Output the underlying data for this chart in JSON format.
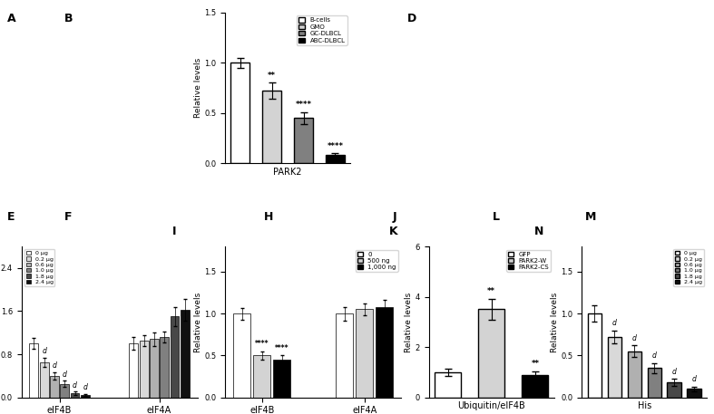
{
  "panel_C": {
    "title": "PARK2",
    "groups": [
      "B-cells",
      "GMO",
      "GC-DLBCL",
      "ABC-DLBCL"
    ],
    "values": [
      1.0,
      0.72,
      0.45,
      0.08
    ],
    "errors": [
      0.05,
      0.08,
      0.06,
      0.02
    ],
    "colors": [
      "#ffffff",
      "#d3d3d3",
      "#808080",
      "#000000"
    ],
    "ylabel": "Relative levels",
    "ylim": [
      0,
      1.5
    ],
    "yticks": [
      0,
      0.5,
      1.0,
      1.5
    ],
    "significance": [
      "",
      "**",
      "****",
      "****"
    ],
    "edgecolor": "#000000"
  },
  "panel_G": {
    "groups": [
      "eIF4B",
      "eIF4A"
    ],
    "series_labels": [
      "0 μg",
      "0.2 μg",
      "0.6 μg",
      "1.0 μg",
      "1.8 μg",
      "2.4 μg"
    ],
    "colors": [
      "#ffffff",
      "#d9d9d9",
      "#b0b0b0",
      "#808080",
      "#484848",
      "#101010"
    ],
    "values_eIF4B": [
      1.0,
      0.65,
      0.4,
      0.25,
      0.08,
      0.05
    ],
    "errors_eIF4B": [
      0.1,
      0.09,
      0.07,
      0.06,
      0.03,
      0.02
    ],
    "values_eIF4A": [
      1.0,
      1.05,
      1.08,
      1.12,
      1.5,
      1.62
    ],
    "errors_eIF4A": [
      0.12,
      0.1,
      0.12,
      0.1,
      0.18,
      0.2
    ],
    "significance_eIF4B": [
      "",
      "d",
      "d",
      "d",
      "d",
      "d"
    ],
    "significance_eIF4A": [
      "",
      "",
      "",
      "",
      "",
      ""
    ],
    "ylabel": "Relative levels",
    "ylim": [
      0,
      2.8
    ],
    "yticks": [
      0,
      0.8,
      1.6,
      2.4
    ]
  },
  "panel_I": {
    "groups": [
      "eIF4B",
      "eIF4A"
    ],
    "series_labels": [
      "0",
      "500 ng",
      "1,000 ng"
    ],
    "colors": [
      "#ffffff",
      "#d3d3d3",
      "#000000"
    ],
    "values_eIF4B": [
      1.0,
      0.5,
      0.45
    ],
    "errors_eIF4B": [
      0.07,
      0.05,
      0.05
    ],
    "values_eIF4A": [
      1.0,
      1.05,
      1.08
    ],
    "errors_eIF4A": [
      0.08,
      0.07,
      0.08
    ],
    "significance_eIF4B": [
      "",
      "****",
      "****"
    ],
    "significance_eIF4A": [
      "",
      "",
      ""
    ],
    "ylabel": "Relative levels",
    "ylim": [
      0,
      1.8
    ],
    "yticks": [
      0,
      0.5,
      1.0,
      1.5
    ]
  },
  "panel_K": {
    "groups": [
      "GFP",
      "PARK2-W",
      "PARK2-CS"
    ],
    "values": [
      1.0,
      3.5,
      0.9
    ],
    "errors": [
      0.15,
      0.4,
      0.12
    ],
    "colors": [
      "#ffffff",
      "#d3d3d3",
      "#000000"
    ],
    "ylabel": "Relative levels",
    "xlabel": "Ubiquitin/eIF4B",
    "ylim": [
      0,
      6.0
    ],
    "yticks": [
      0,
      2,
      4,
      6
    ],
    "significance": [
      "",
      "**",
      "**"
    ],
    "edgecolor": "#000000"
  },
  "panel_N": {
    "series_labels": [
      "0 μg",
      "0.2 μg",
      "0.6 μg",
      "1.0 μg",
      "1.8 μg",
      "2.4 μg"
    ],
    "colors": [
      "#ffffff",
      "#d9d9d9",
      "#b0b0b0",
      "#808080",
      "#484848",
      "#101010"
    ],
    "values": [
      1.0,
      0.72,
      0.55,
      0.35,
      0.18,
      0.1
    ],
    "errors": [
      0.1,
      0.08,
      0.07,
      0.06,
      0.04,
      0.03
    ],
    "significance": [
      "",
      "d",
      "d",
      "d",
      "d",
      "d"
    ],
    "ylabel": "Relative levels",
    "xlabel": "His",
    "ylim": [
      0,
      1.8
    ],
    "yticks": [
      0,
      0.5,
      1.0,
      1.5
    ]
  }
}
